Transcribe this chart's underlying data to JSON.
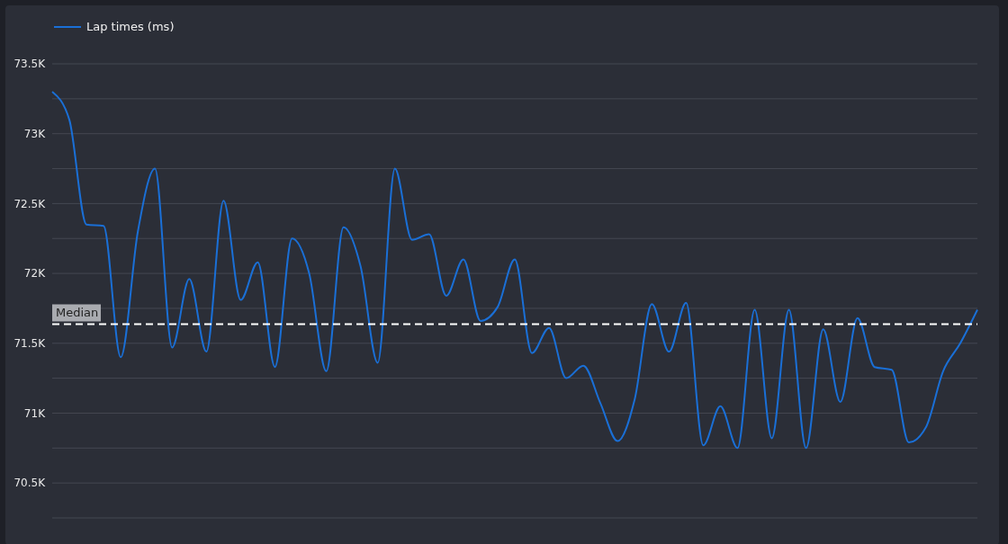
{
  "chart_data": {
    "type": "line",
    "categories": [
      null,
      null,
      null,
      null,
      null,
      null,
      null,
      null,
      null,
      null,
      null,
      null,
      null,
      null,
      null,
      null,
      null,
      null,
      null,
      null,
      null,
      null,
      null,
      null,
      null,
      null,
      null,
      null,
      null,
      null,
      null,
      null,
      null,
      null,
      null,
      null,
      null,
      null,
      null,
      null,
      null,
      null,
      null,
      null,
      null,
      null,
      null,
      null,
      null,
      null,
      null,
      null,
      null,
      null,
      null
    ],
    "series": [
      {
        "name": "Lap times (ms)",
        "color": "#1a6fd6",
        "values": [
          73300,
          73100,
          72350,
          72340,
          71400,
          72300,
          72750,
          71470,
          71960,
          71440,
          72520,
          71810,
          72080,
          71330,
          72250,
          72000,
          71300,
          72330,
          72050,
          71360,
          72750,
          72240,
          72280,
          71840,
          72100,
          71660,
          71760,
          72100,
          71430,
          71610,
          71250,
          71340,
          71070,
          70800,
          71100,
          71780,
          71440,
          71790,
          70770,
          71050,
          70750,
          71740,
          70820,
          71740,
          70750,
          71600,
          71080,
          71680,
          71330,
          71310,
          70790,
          70900,
          71300,
          71500,
          71740
        ]
      }
    ],
    "ylim": [
      70250,
      73500
    ],
    "yticks": [
      {
        "value": 70250,
        "label": null
      },
      {
        "value": 70500,
        "label": "70.5K"
      },
      {
        "value": 70750,
        "label": null
      },
      {
        "value": 71000,
        "label": "71K"
      },
      {
        "value": 71250,
        "label": null
      },
      {
        "value": 71500,
        "label": "71.5K"
      },
      {
        "value": 71750,
        "label": null
      },
      {
        "value": 72000,
        "label": "72K"
      },
      {
        "value": 72250,
        "label": null
      },
      {
        "value": 72500,
        "label": "72.5K"
      },
      {
        "value": 72750,
        "label": null
      },
      {
        "value": 73000,
        "label": "73K"
      },
      {
        "value": 73250,
        "label": null
      },
      {
        "value": 73500,
        "label": "73.5K"
      }
    ],
    "ref_lines": [
      {
        "axis": "y",
        "value": 71637,
        "label": "Median",
        "color": "#ffffff",
        "line_style": "dashed"
      }
    ],
    "grid": "y",
    "legend": "top left",
    "tick_labels": "y",
    "marker": "none",
    "line_style": "solid"
  }
}
